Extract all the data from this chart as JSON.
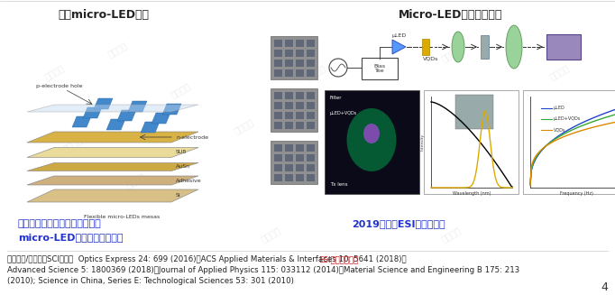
{
  "bg_color": "#ffffff",
  "title_left": "柔性micro-LED阵列",
  "title_right": "Micro-LED与量子点集成",
  "caption_left_line1": "首次实现柔性垂直结构、硅衬底",
  "caption_left_line2": "micro-LED显示和可见光通信",
  "caption_right": "2019年入选ESI高被引论文",
  "footer_line1a": "相关第一/通信作者SCI论文：  Optics Express 24: 699 (2016)；ACS Applied Materials & Interfaces 10: 5641 (2018)，",
  "footer_line1b": "ESI高被引论文；",
  "footer_line2": "Advanced Science 5: 1800369 (2018)；Journal of Applied Physics 115: 033112 (2014)；Material Science and Engineering B 175: 213",
  "footer_line3": "(2010); Science in China, Series E: Technological Sciences 53: 301 (2010)",
  "page_number": "4",
  "title_color": "#222222",
  "title_fontsize": 9,
  "caption_left_color": "#2233cc",
  "caption_right_color": "#2233cc",
  "footer_color": "#222222",
  "esi_color": "#cc1111",
  "footer_fontsize": 6.2
}
